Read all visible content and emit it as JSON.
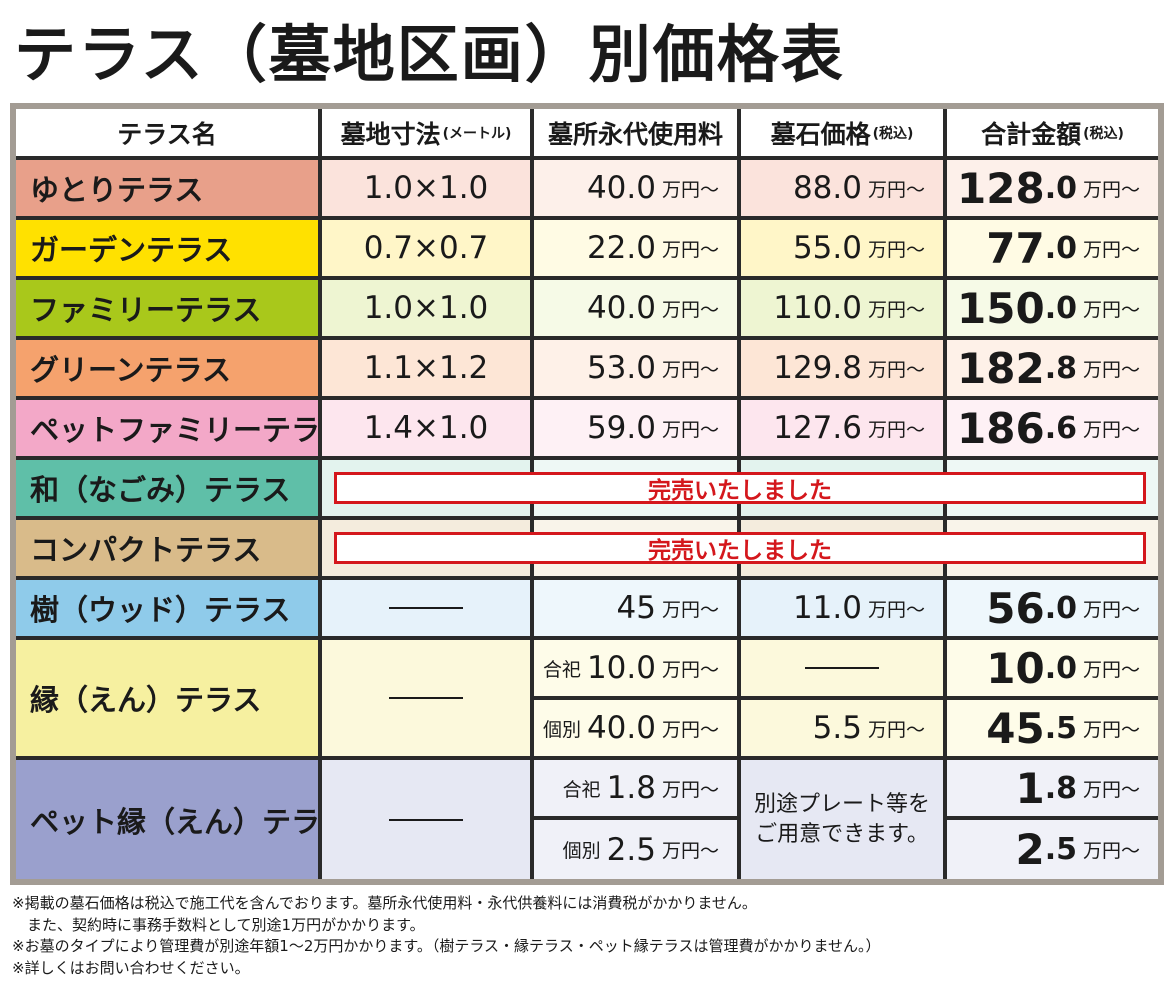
{
  "title": "テラス（墓地区画）別価格表",
  "header": {
    "name": "テラス名",
    "size": "墓地寸法",
    "size_note": "(メートル)",
    "fee": "墓所永代使用料",
    "stone": "墓石価格",
    "stone_note": "(税込)",
    "total": "合計金額",
    "total_note": "(税込)"
  },
  "unit": "万円〜",
  "rows": {
    "yutori": {
      "name": "ゆとりテラス",
      "size": "1.0×1.0",
      "fee": "40.0",
      "stone": "88.0",
      "total_int": "128",
      "total_dec": ".0"
    },
    "garden": {
      "name": "ガーデンテラス",
      "size": "0.7×0.7",
      "fee": "22.0",
      "stone": "55.0",
      "total_int": "77",
      "total_dec": ".0"
    },
    "family": {
      "name": "ファミリーテラス",
      "size": "1.0×1.0",
      "fee": "40.0",
      "stone": "110.0",
      "total_int": "150",
      "total_dec": ".0"
    },
    "green": {
      "name": "グリーンテラス",
      "size": "1.1×1.2",
      "fee": "53.0",
      "stone": "129.8",
      "total_int": "182",
      "total_dec": ".8"
    },
    "petfamily": {
      "name": "ペットファミリーテラス",
      "size": "1.4×1.0",
      "fee": "59.0",
      "stone": "127.6",
      "total_int": "186",
      "total_dec": ".6"
    },
    "nagomi": {
      "name": "和（なごみ）テラス",
      "status": "完売いたしました"
    },
    "compact": {
      "name": "コンパクトテラス",
      "status": "完売いたしました"
    },
    "wood": {
      "name": "樹（ウッド）テラス",
      "fee": "45",
      "stone": "11.0",
      "total_int": "56",
      "total_dec": ".0"
    },
    "en": {
      "name": "縁（えん）テラス",
      "shared_label": "合祀",
      "shared_fee": "10.0",
      "shared_total_int": "10",
      "shared_total_dec": ".0",
      "individual_label": "個別",
      "individual_fee": "40.0",
      "individual_stone": "5.5",
      "individual_total_int": "45",
      "individual_total_dec": ".5"
    },
    "peten": {
      "name": "ペット縁（えん）テラス",
      "shared_label": "合祀",
      "shared_fee": "1.8",
      "shared_total_int": "1",
      "shared_total_dec": ".8",
      "individual_label": "個別",
      "individual_fee": "2.5",
      "individual_total_int": "2",
      "individual_total_dec": ".5",
      "stone_note": "別途プレート等を\nご用意できます。"
    }
  },
  "colors": {
    "yutori": "#e8a08a",
    "garden": "#ffe100",
    "family": "#a9c81b",
    "green": "#f5a26d",
    "petfamily": "#f3a8c8",
    "nagomi": "#5fbfa8",
    "compact": "#d9bb8a",
    "wood": "#8fcbea",
    "en": "#f6f0a0",
    "peten": "#9aa0cd",
    "sold_out": "#d4171c"
  },
  "footnotes": [
    "※掲載の墓石価格は税込で施工代を含んでおります。墓所永代使用料・永代供養料には消費税がかかりません。",
    "　また、契約時に事務手数料として別途1万円がかかります。",
    "※お墓のタイプにより管理費が別途年額1～2万円かかります。（樹テラス・縁テラス・ペット縁テラスは管理費がかかりません。）",
    "※詳しくはお問い合わせください。"
  ]
}
